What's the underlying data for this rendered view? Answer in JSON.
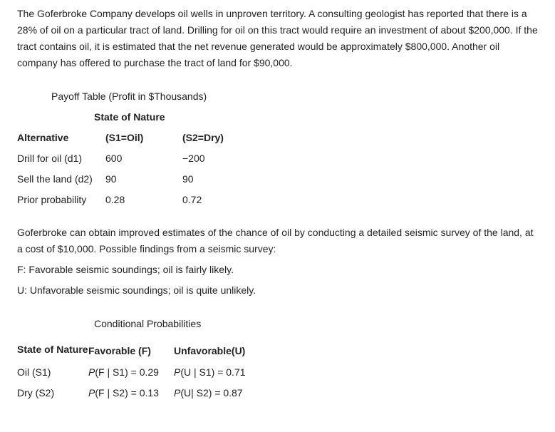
{
  "intro": "The Goferbroke Company develops oil wells in unproven territory. A consulting geologist has reported that there is a 28% of oil on a particular tract of land. Drilling for oil on this tract would require an investment of about $200,000. If the tract contains oil, it is estimated that the net revenue generated would be approximately $800,000. Another oil company has offered to purchase the tract of land for $90,000.",
  "payoff": {
    "caption": "Payoff Table (Profit in $Thousands)",
    "state_header": "State of Nature",
    "columns": {
      "alt": "Alternative",
      "s1": "(S1=Oil)",
      "s2": "(S2=Dry)"
    },
    "rows": [
      {
        "label": "Drill for oil (d1)",
        "s1": "600",
        "s2": "−200"
      },
      {
        "label": "Sell the land (d2)",
        "s1": "90",
        "s2": "90"
      },
      {
        "label": "Prior probability",
        "s1": "0.28",
        "s2": "0.72"
      }
    ]
  },
  "mid": {
    "p1": "Goferbroke can obtain improved estimates of the chance of oil by conducting a detailed seismic survey of the land, at a cost of $10,000. Possible findings from a seismic survey:",
    "p2": "F: Favorable seismic soundings; oil is fairly likely.",
    "p3": "U: Unfavorable seismic soundings; oil is quite unlikely."
  },
  "cond": {
    "caption": "Conditional Probabilities",
    "header": {
      "state": "State of Nature",
      "fav": "Favorable (F)",
      "unfav": "Unfavorable(U)"
    },
    "rows": [
      {
        "state": "Oil (S1)",
        "fav_lhs": "P",
        "fav_rhs": "(F | S1) = 0.29",
        "unf_lhs": "P",
        "unf_rhs": "(U | S1) = 0.71"
      },
      {
        "state": "Dry (S2)",
        "fav_lhs": "P",
        "fav_rhs": "(F | S2) = 0.13",
        "unf_lhs": "P",
        "unf_rhs": "(U| S2) = 0.87"
      }
    ]
  }
}
